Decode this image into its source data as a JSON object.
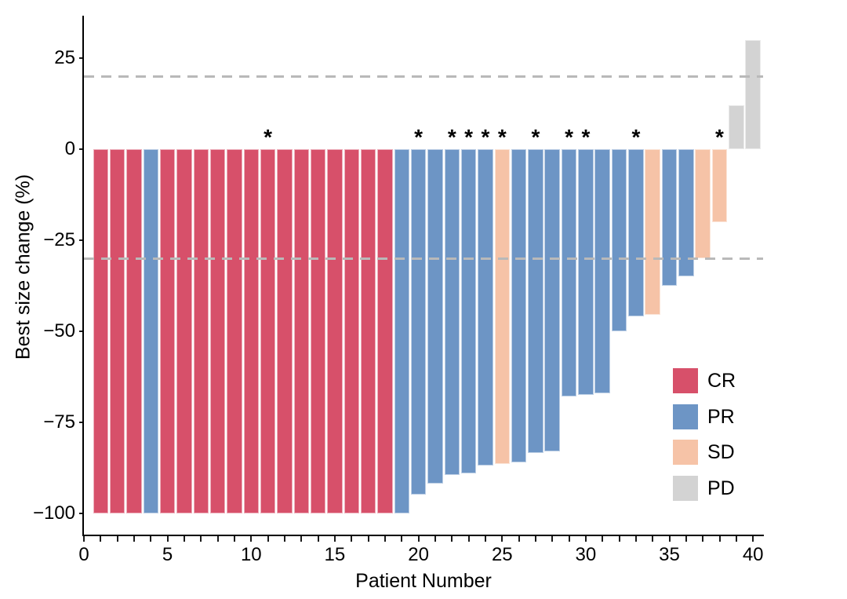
{
  "chart_data": {
    "type": "bar",
    "subtype": "waterfall",
    "title": "",
    "xlabel": "Patient Number",
    "ylabel": "Best size change (%)",
    "x_ticks": [
      0,
      5,
      10,
      15,
      20,
      25,
      30,
      35,
      40
    ],
    "x_minor_tick_every": 1,
    "x_range": [
      0,
      40.75
    ],
    "y_ticks": [
      25,
      0,
      -25,
      -50,
      -75,
      -100
    ],
    "y_tick_labels": [
      "25",
      "0",
      "−25",
      "−50",
      "−75",
      "−100"
    ],
    "ylim": [
      -106,
      33
    ],
    "grid": false,
    "reference_lines": [
      {
        "y": 20,
        "style": "dashed",
        "color": "#b9b9b9"
      },
      {
        "y": -30,
        "style": "dashed",
        "color": "#b9b9b9"
      }
    ],
    "annotation_symbol": "*",
    "legend": {
      "position": "inside-right",
      "entries": [
        {
          "label": "CR",
          "color": "#d7506a"
        },
        {
          "label": "PR",
          "color": "#6d95c5"
        },
        {
          "label": "SD",
          "color": "#f6c3a7"
        },
        {
          "label": "PD",
          "color": "#d3d3d3"
        }
      ]
    },
    "patients": [
      {
        "patient": 1,
        "response": "CR",
        "best_size_change_pct": -100,
        "starred": false
      },
      {
        "patient": 2,
        "response": "CR",
        "best_size_change_pct": -100,
        "starred": false
      },
      {
        "patient": 3,
        "response": "CR",
        "best_size_change_pct": -100,
        "starred": false
      },
      {
        "patient": 4,
        "response": "PR",
        "best_size_change_pct": -100,
        "starred": false
      },
      {
        "patient": 5,
        "response": "CR",
        "best_size_change_pct": -100,
        "starred": false
      },
      {
        "patient": 6,
        "response": "CR",
        "best_size_change_pct": -100,
        "starred": false
      },
      {
        "patient": 7,
        "response": "CR",
        "best_size_change_pct": -100,
        "starred": false
      },
      {
        "patient": 8,
        "response": "CR",
        "best_size_change_pct": -100,
        "starred": false
      },
      {
        "patient": 9,
        "response": "CR",
        "best_size_change_pct": -100,
        "starred": false
      },
      {
        "patient": 10,
        "response": "CR",
        "best_size_change_pct": -100,
        "starred": false
      },
      {
        "patient": 11,
        "response": "CR",
        "best_size_change_pct": -100,
        "starred": true
      },
      {
        "patient": 12,
        "response": "CR",
        "best_size_change_pct": -100,
        "starred": false
      },
      {
        "patient": 13,
        "response": "CR",
        "best_size_change_pct": -100,
        "starred": false
      },
      {
        "patient": 14,
        "response": "CR",
        "best_size_change_pct": -100,
        "starred": false
      },
      {
        "patient": 15,
        "response": "CR",
        "best_size_change_pct": -100,
        "starred": false
      },
      {
        "patient": 16,
        "response": "CR",
        "best_size_change_pct": -100,
        "starred": false
      },
      {
        "patient": 17,
        "response": "CR",
        "best_size_change_pct": -100,
        "starred": false
      },
      {
        "patient": 18,
        "response": "CR",
        "best_size_change_pct": -100,
        "starred": false
      },
      {
        "patient": 19,
        "response": "PR",
        "best_size_change_pct": -100,
        "starred": false
      },
      {
        "patient": 20,
        "response": "PR",
        "best_size_change_pct": -95,
        "starred": true
      },
      {
        "patient": 21,
        "response": "PR",
        "best_size_change_pct": -92,
        "starred": false
      },
      {
        "patient": 22,
        "response": "PR",
        "best_size_change_pct": -89.5,
        "starred": true
      },
      {
        "patient": 23,
        "response": "PR",
        "best_size_change_pct": -89,
        "starred": true
      },
      {
        "patient": 24,
        "response": "PR",
        "best_size_change_pct": -87,
        "starred": true
      },
      {
        "patient": 25,
        "response": "SD",
        "best_size_change_pct": -86.5,
        "starred": true
      },
      {
        "patient": 26,
        "response": "PR",
        "best_size_change_pct": -86,
        "starred": false
      },
      {
        "patient": 27,
        "response": "PR",
        "best_size_change_pct": -83.5,
        "starred": true
      },
      {
        "patient": 28,
        "response": "PR",
        "best_size_change_pct": -83,
        "starred": false
      },
      {
        "patient": 29,
        "response": "PR",
        "best_size_change_pct": -68,
        "starred": true
      },
      {
        "patient": 30,
        "response": "PR",
        "best_size_change_pct": -67.5,
        "starred": true
      },
      {
        "patient": 31,
        "response": "PR",
        "best_size_change_pct": -67,
        "starred": false
      },
      {
        "patient": 32,
        "response": "PR",
        "best_size_change_pct": -50,
        "starred": false
      },
      {
        "patient": 33,
        "response": "PR",
        "best_size_change_pct": -46,
        "starred": true
      },
      {
        "patient": 34,
        "response": "SD",
        "best_size_change_pct": -45.5,
        "starred": false
      },
      {
        "patient": 35,
        "response": "PR",
        "best_size_change_pct": -37.5,
        "starred": false
      },
      {
        "patient": 36,
        "response": "PR",
        "best_size_change_pct": -35,
        "starred": false
      },
      {
        "patient": 37,
        "response": "SD",
        "best_size_change_pct": -30,
        "starred": false
      },
      {
        "patient": 38,
        "response": "SD",
        "best_size_change_pct": -20,
        "starred": true
      },
      {
        "patient": 39,
        "response": "PD",
        "best_size_change_pct": 12,
        "starred": false
      },
      {
        "patient": 40,
        "response": "PD",
        "best_size_change_pct": 30,
        "starred": false
      }
    ]
  }
}
